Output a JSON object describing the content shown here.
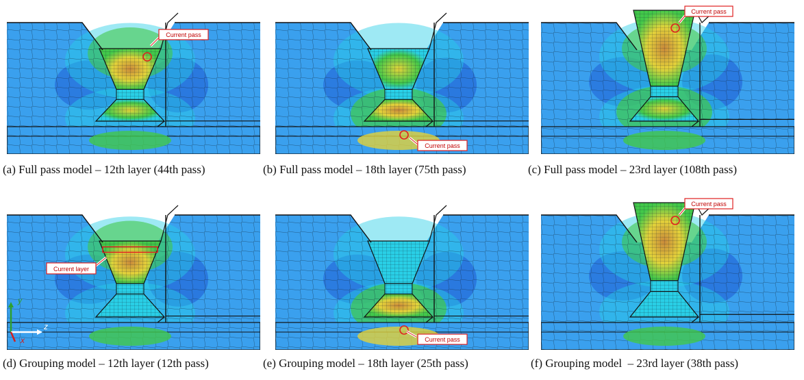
{
  "figure": {
    "colors": {
      "background": "#ffffff",
      "base_blue": "#3aa0ee",
      "deep_blue": "#1f5fd6",
      "cyan": "#29cfe6",
      "green": "#42c84a",
      "yellow": "#e3d23a",
      "orange": "#e0a83b",
      "mesh_line": "#102030",
      "callout_red": "#e02020"
    },
    "panels": [
      {
        "caption": "(a) Full pass model – 12th layer (44th pass)",
        "callout": "Current pass",
        "variant": "a"
      },
      {
        "caption": "(b) Full pass model – 18th layer (75th pass)",
        "callout": "Current pass",
        "variant": "b"
      },
      {
        "caption": "(c) Full pass model – 23rd layer (108th pass)",
        "callout": "Current pass",
        "variant": "c"
      },
      {
        "caption": "(d) Grouping model – 12th layer (12th pass)",
        "callout": "Current layer",
        "variant": "d"
      },
      {
        "caption": "(e) Grouping model – 18th layer (25th pass)",
        "callout": "Current pass",
        "variant": "e"
      },
      {
        "caption": "(f) Grouping model  – 23rd layer (38th pass)",
        "callout": "Current pass",
        "variant": "f"
      }
    ],
    "axis_triad": {
      "y": "y",
      "z": "z",
      "x": "x"
    }
  }
}
